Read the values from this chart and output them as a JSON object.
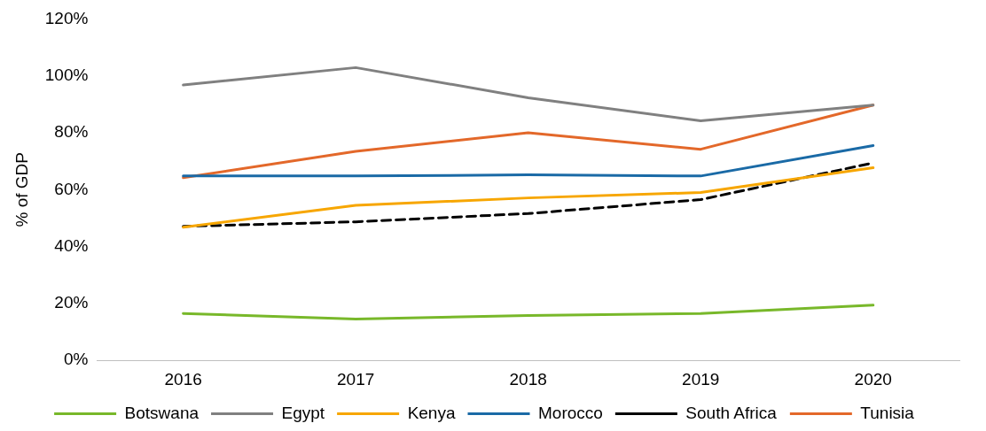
{
  "chart_data": {
    "type": "line",
    "ylabel": "% of GDP",
    "categories": [
      "2016",
      "2017",
      "2018",
      "2019",
      "2020"
    ],
    "series": [
      {
        "name": "Botswana",
        "color": "#78b82a",
        "values": [
          16.5,
          14.5,
          15.8,
          16.5,
          19.4
        ]
      },
      {
        "name": "Egypt",
        "color": "#808080",
        "values": [
          96.8,
          102.9,
          92.3,
          84.2,
          89.7
        ]
      },
      {
        "name": "Kenya",
        "color": "#f7a600",
        "values": [
          46.8,
          54.5,
          57.1,
          59,
          67.7
        ]
      },
      {
        "name": "Morocco",
        "color": "#1a6aa6",
        "values": [
          64.8,
          64.8,
          65.2,
          64.8,
          75.5
        ]
      },
      {
        "name": "South Africa",
        "color": "#000000",
        "values": [
          47.1,
          48.7,
          51.6,
          56.5,
          69.4
        ],
        "line_style": "dashed"
      },
      {
        "name": "Tunisia",
        "color": "#e3682a",
        "values": [
          64.2,
          73.5,
          80,
          74.2,
          89.7
        ]
      }
    ],
    "ylim": [
      0,
      120
    ],
    "yticks": [
      {
        "value": 0,
        "label": "0%"
      },
      {
        "value": 20,
        "label": "20%"
      },
      {
        "value": 40,
        "label": "40%"
      },
      {
        "value": 60,
        "label": "60%"
      },
      {
        "value": 80,
        "label": "80%"
      },
      {
        "value": 100,
        "label": "100%"
      },
      {
        "value": 120,
        "label": "120%"
      }
    ],
    "grid": false,
    "legend": "bottom",
    "marker": "none",
    "line_style": "solid"
  }
}
